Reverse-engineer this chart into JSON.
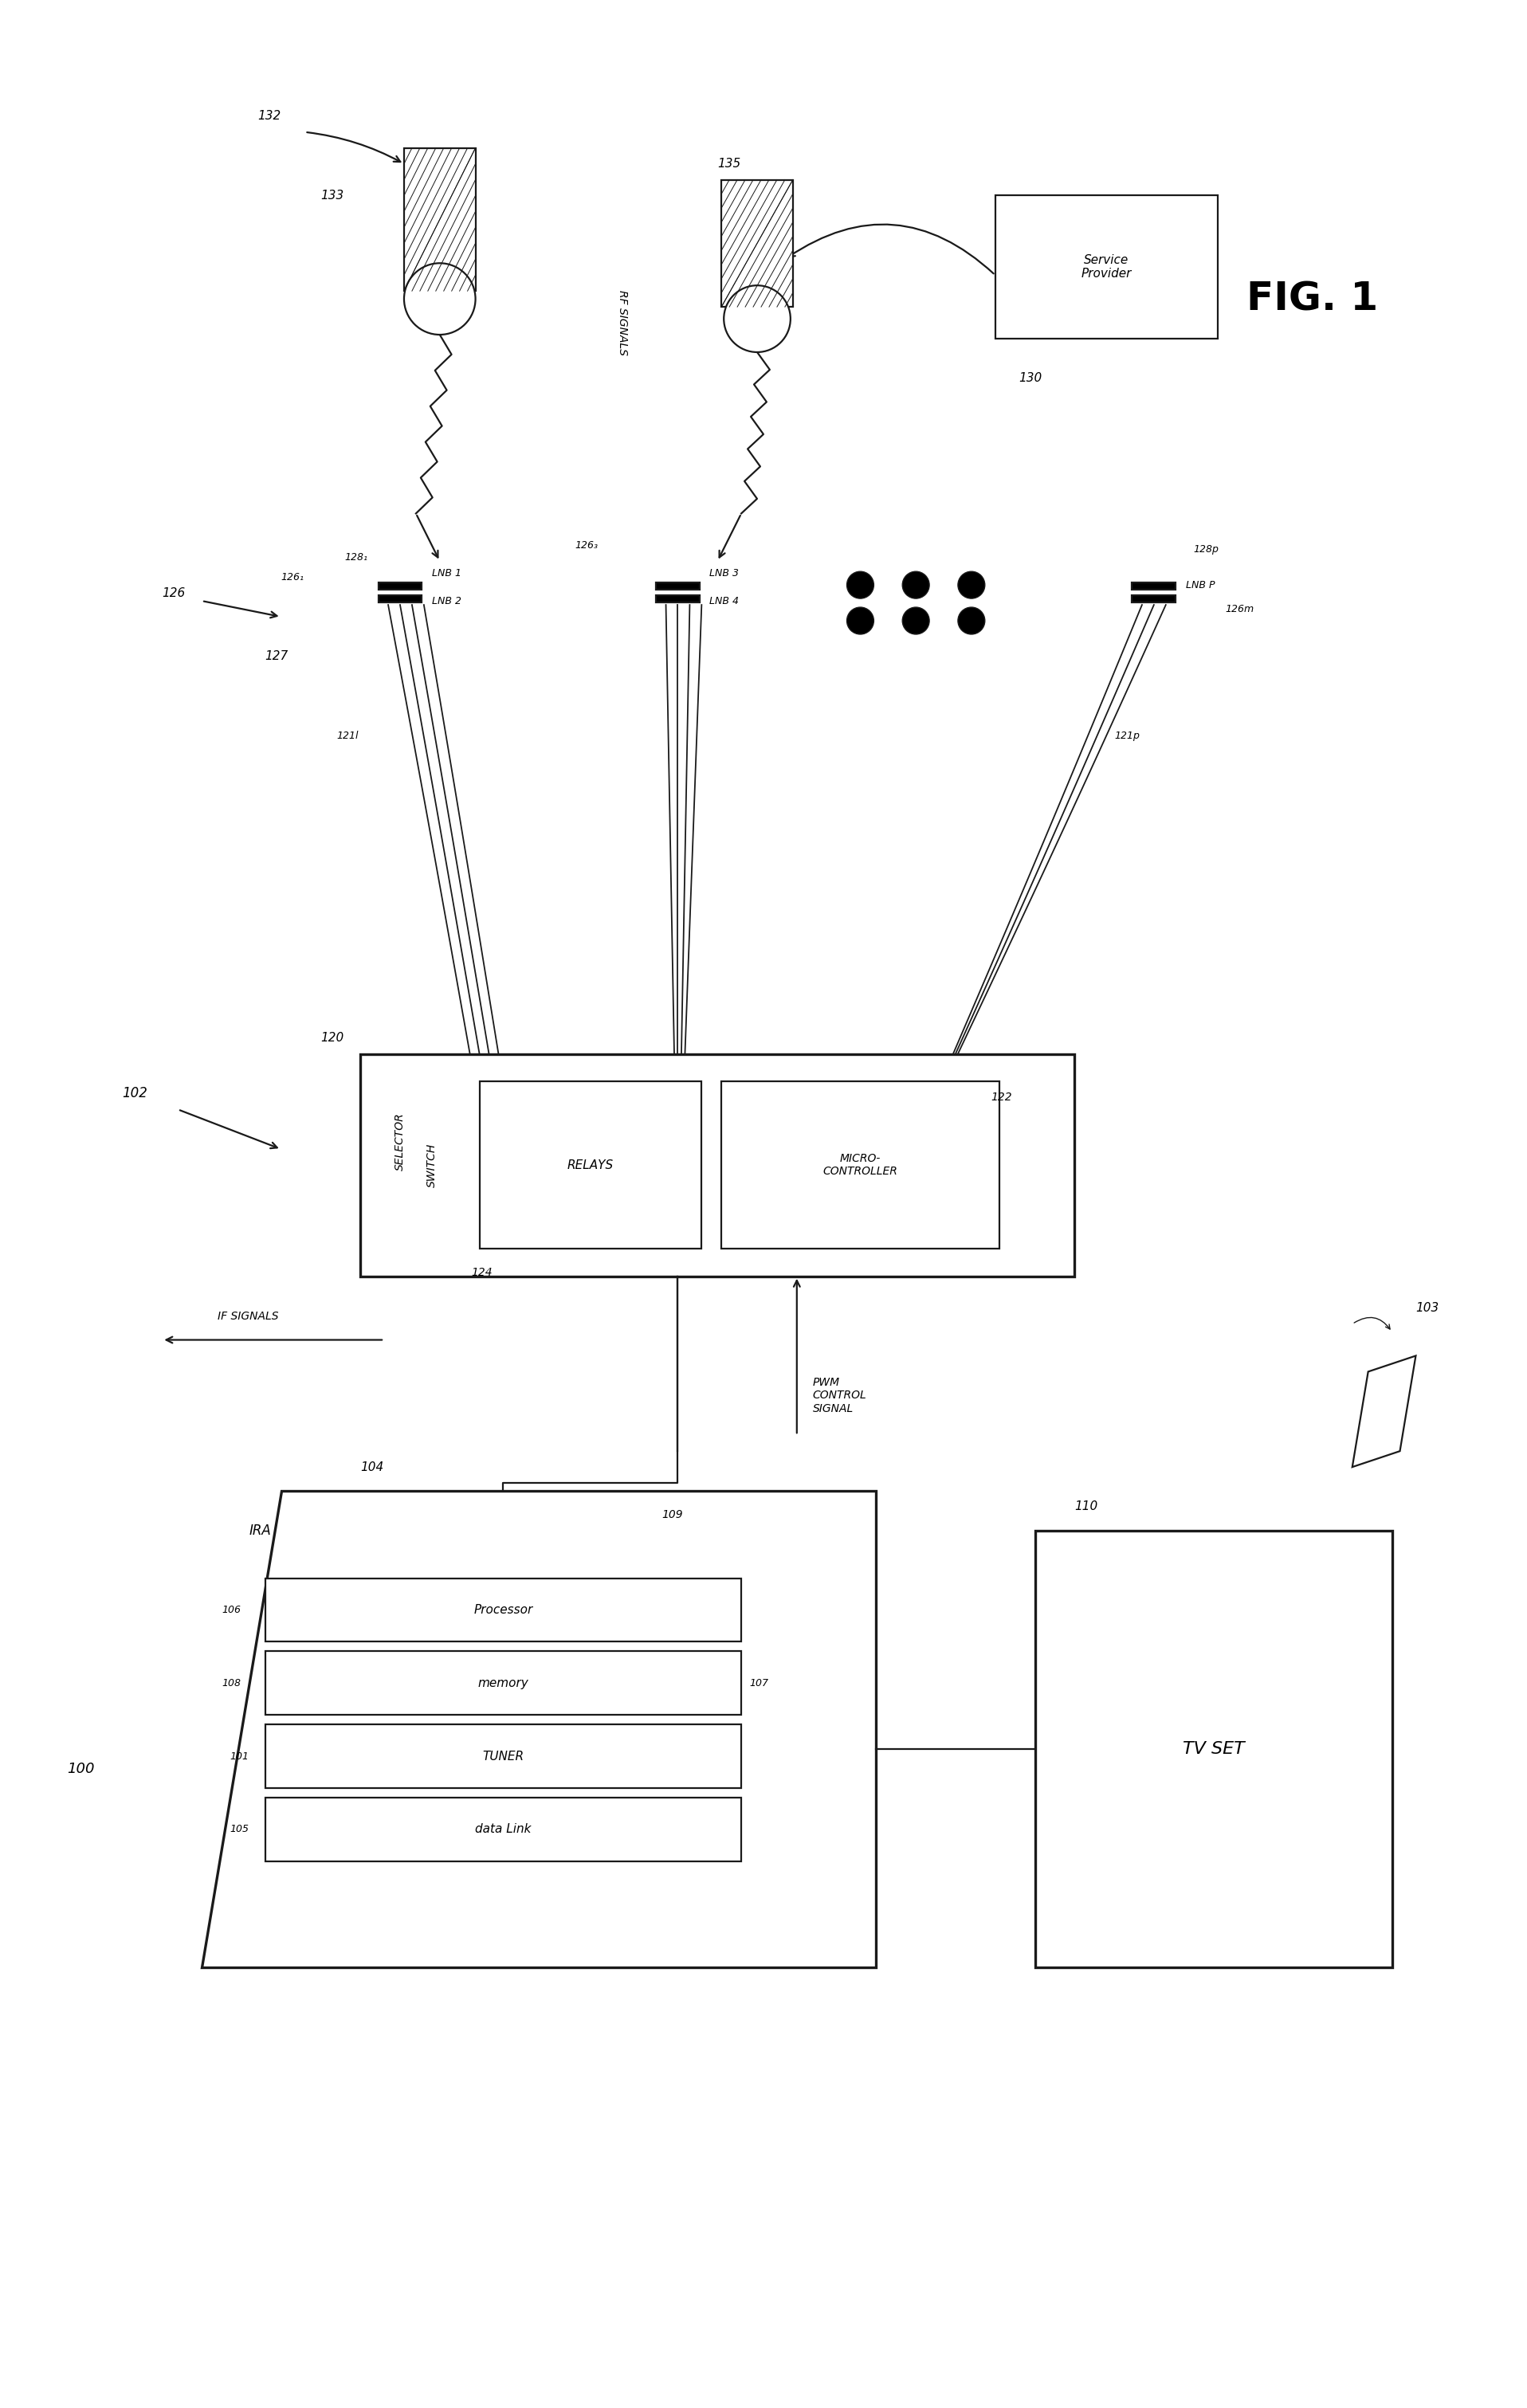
{
  "bg_color": "#ffffff",
  "ink_color": "#1a1a1a",
  "fig_width": 19.16,
  "fig_height": 30.22,
  "fig_label": "FIG. 1",
  "labels": {
    "rf_signals": "RF SIGNALS",
    "service_provider": "Service\nProvider",
    "selector_switch": "SELECTOR\nSWITCH",
    "relays": "RELAYS",
    "micro": "MICRO-\nCONTROLLER",
    "if_signals": "IF SIGNALS",
    "pwm": "PWM\nCONTROL\nSIGNAL",
    "ira": "IRA",
    "processor": "Processor",
    "memory": "memory",
    "tuner": "TUNER",
    "data_link": "data Link",
    "tv_set": "TV SET",
    "lnb1": "LNB 1",
    "lnb2": "LNB 2",
    "lnb3": "LNB 3",
    "lnb4": "LNB 4",
    "lnbp": "LNB P"
  },
  "refs": {
    "r100": "100",
    "r102": "102",
    "r103": "103",
    "r104": "104",
    "r105": "105",
    "r106": "106",
    "r107": "107",
    "r108": "108",
    "r109": "109",
    "r110": "110",
    "r120": "120",
    "r121l": "121l",
    "r121p": "121p",
    "r122": "122",
    "r124": "124",
    "r126": "126",
    "r126_1": "126₁",
    "r126_3": "126₃",
    "r126m": "126m",
    "r128_1": "128₁",
    "r128p": "128p",
    "r130": "130",
    "r132": "132",
    "r133": "133",
    "r135": "135"
  }
}
